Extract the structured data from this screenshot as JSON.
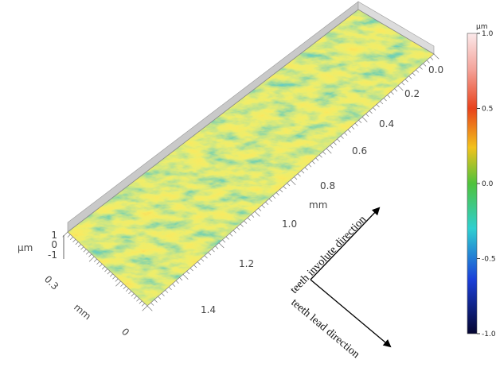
{
  "surface_axes": {
    "length_ticks": [
      "0.0",
      "0.2",
      "0.4",
      "0.6",
      "0.8",
      "1.0",
      "1.2",
      "1.4"
    ],
    "length_unit": "mm",
    "width_ticks": [
      "0.3",
      "0"
    ],
    "width_unit": "mm",
    "height_ticks": [
      "1",
      "0",
      "-1"
    ],
    "height_unit": "µm"
  },
  "colorbar": {
    "unit": "µm",
    "ticks": [
      "1.0",
      "0.5",
      "0.0",
      "-0.5",
      "-1.0"
    ]
  },
  "arrows": {
    "involute": "teeth involute direction",
    "lead": "teeth lead direction"
  }
}
